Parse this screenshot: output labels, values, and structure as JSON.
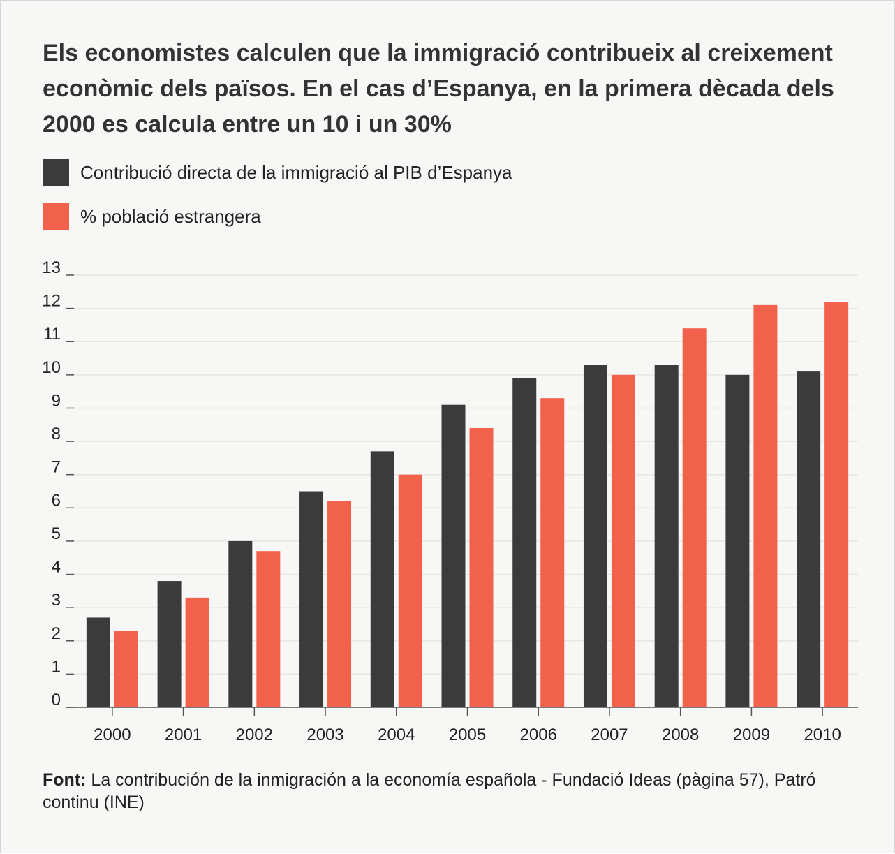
{
  "chart_data": {
    "type": "bar",
    "title": "Els economistes calculen que la immigració contribueix al creixement econòmic dels països. En el cas d’Espanya, en la primera dècada dels 2000 es calcula entre un 10 i un 30%",
    "categories": [
      "2000",
      "2001",
      "2002",
      "2003",
      "2004",
      "2005",
      "2006",
      "2007",
      "2008",
      "2009",
      "2010"
    ],
    "series": [
      {
        "name": "Contribució directa de la immigració al PIB d’Espanya",
        "color": "#3b3b3b",
        "values": [
          2.7,
          3.8,
          5.0,
          6.5,
          7.7,
          9.1,
          9.9,
          10.3,
          10.3,
          10.0,
          10.1
        ]
      },
      {
        "name": "% població estrangera",
        "color": "#f2614b",
        "values": [
          2.3,
          3.3,
          4.7,
          6.2,
          7.0,
          8.4,
          9.3,
          10.0,
          11.4,
          12.1,
          12.2
        ]
      }
    ],
    "ylim": [
      0,
      13
    ],
    "yticks": [
      0,
      1,
      2,
      3,
      4,
      5,
      6,
      7,
      8,
      9,
      10,
      11,
      12,
      13
    ],
    "grid": true,
    "source_label": "Font:",
    "source": "La contribución de la inmigración a la economía española - Fundació Ideas (pàgina 57), Patró continu (INE)"
  }
}
